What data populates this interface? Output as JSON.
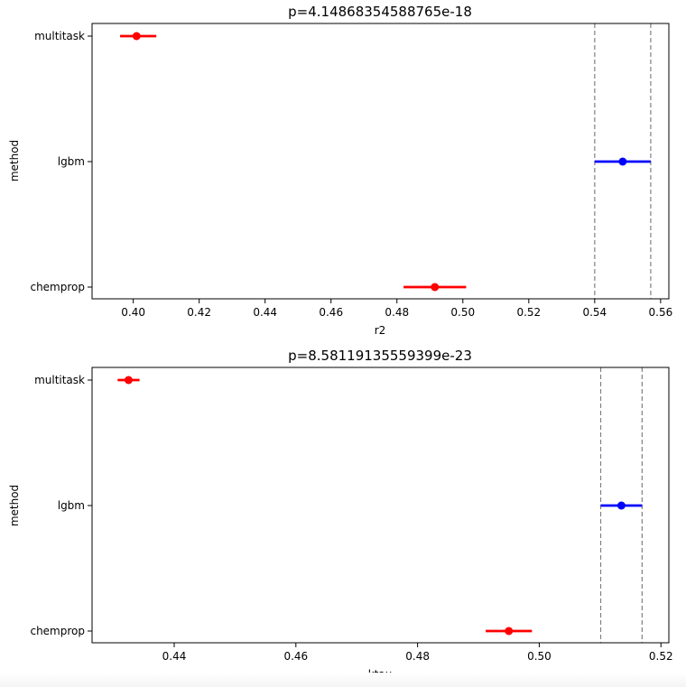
{
  "chart_data": [
    {
      "type": "scatter",
      "title": "p=4.14868354588765e-18",
      "xlabel": "r2",
      "ylabel": "method",
      "xlim": [
        0.3875,
        0.5625
      ],
      "xticks": [
        0.4,
        0.42,
        0.44,
        0.46,
        0.48,
        0.5,
        0.52,
        0.54,
        0.56
      ],
      "xtick_labels": [
        "0.40",
        "0.42",
        "0.44",
        "0.46",
        "0.48",
        "0.50",
        "0.52",
        "0.54",
        "0.56"
      ],
      "categories": [
        "multitask",
        "lgbm",
        "chemprop"
      ],
      "points": [
        {
          "method": "multitask",
          "mean": 0.401,
          "low": 0.396,
          "high": 0.407,
          "color": "#ff0000"
        },
        {
          "method": "lgbm",
          "mean": 0.5485,
          "low": 0.54,
          "high": 0.557,
          "color": "#0000ff"
        },
        {
          "method": "chemprop",
          "mean": 0.4915,
          "low": 0.482,
          "high": 0.501,
          "color": "#ff0000"
        }
      ],
      "vlines": [
        0.54,
        0.557
      ],
      "grid": false
    },
    {
      "type": "scatter",
      "title": "p=8.58119135559399e-23",
      "xlabel": "ktau",
      "ylabel": "method",
      "xlim": [
        0.4265,
        0.5213
      ],
      "xticks": [
        0.44,
        0.46,
        0.48,
        0.5,
        0.52
      ],
      "xtick_labels": [
        "0.44",
        "0.46",
        "0.48",
        "0.50",
        "0.52"
      ],
      "categories": [
        "multitask",
        "lgbm",
        "chemprop"
      ],
      "points": [
        {
          "method": "multitask",
          "mean": 0.4325,
          "low": 0.4307,
          "high": 0.4343,
          "color": "#ff0000"
        },
        {
          "method": "lgbm",
          "mean": 0.5135,
          "low": 0.5101,
          "high": 0.5169,
          "color": "#0000ff"
        },
        {
          "method": "chemprop",
          "mean": 0.495,
          "low": 0.4912,
          "high": 0.4988,
          "color": "#ff0000"
        }
      ],
      "vlines": [
        0.5101,
        0.5169
      ],
      "grid": false
    }
  ]
}
